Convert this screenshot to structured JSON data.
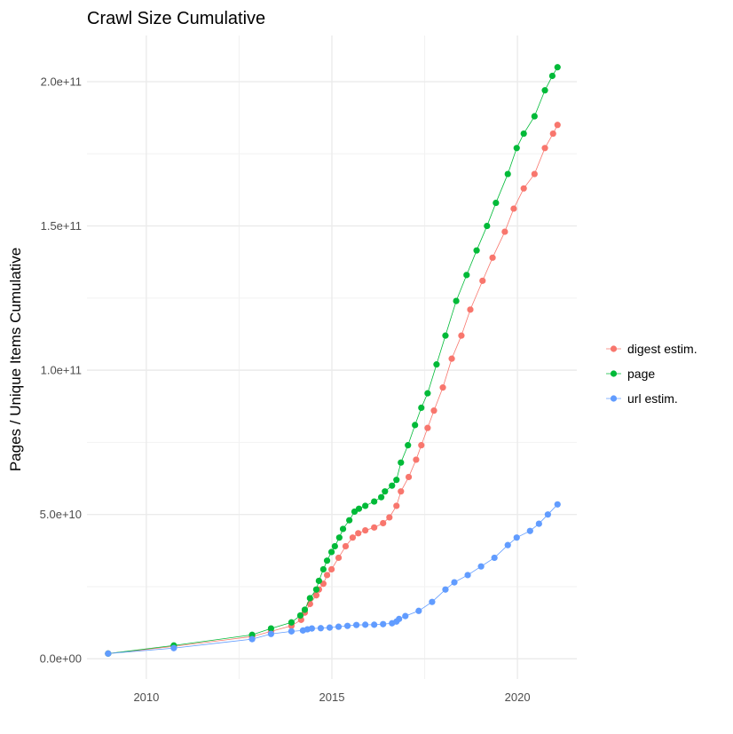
{
  "chart_data": {
    "type": "line",
    "title": "Crawl Size Cumulative",
    "xlabel": "",
    "ylabel": "Pages / Unique Items Cumulative",
    "xlim": [
      2008.4,
      2021.6
    ],
    "ylim": [
      -7000000000.0,
      216000000000.0
    ],
    "x_ticks": [
      2010,
      2015,
      2020
    ],
    "x_tick_labels": [
      "2010",
      "2015",
      "2020"
    ],
    "y_ticks": [
      0,
      50000000000.0,
      100000000000.0,
      150000000000.0,
      200000000000.0
    ],
    "y_tick_labels": [
      "0.0e+00",
      "5.0e+10",
      "1.0e+11",
      "1.5e+11",
      "2.0e+11"
    ],
    "grid": true,
    "legend_position": "right",
    "markers": "points with connecting lines",
    "series": [
      {
        "name": "digest estim.",
        "color": "#F8766D",
        "x": [
          2008.97,
          2010.74,
          2012.85,
          2013.36,
          2013.91,
          2014.17,
          2014.27,
          2014.41,
          2014.58,
          2014.65,
          2014.77,
          2014.87,
          2014.99,
          2015.18,
          2015.37,
          2015.56,
          2015.71,
          2015.9,
          2016.14,
          2016.38,
          2016.55,
          2016.74,
          2016.86,
          2017.07,
          2017.27,
          2017.41,
          2017.58,
          2017.75,
          2017.99,
          2018.23,
          2018.49,
          2018.73,
          2019.06,
          2019.33,
          2019.66,
          2019.9,
          2020.17,
          2020.46,
          2020.74,
          2020.96,
          2021.08
        ],
        "y": [
          1800000000.0,
          4300000000.0,
          7700000000.0,
          9500000000.0,
          11400000000.0,
          13500000000.0,
          16000000000.0,
          19000000000.0,
          22000000000.0,
          24000000000.0,
          26000000000.0,
          29000000000.0,
          31000000000.0,
          35000000000.0,
          39000000000.0,
          42000000000.0,
          43500000000.0,
          44500000000.0,
          45500000000.0,
          47000000000.0,
          49000000000.0,
          53000000000.0,
          58000000000.0,
          63000000000.0,
          69000000000.0,
          74000000000.0,
          80000000000.0,
          86000000000.0,
          94000000000.0,
          104000000000.0,
          112000000000.0,
          121000000000.0,
          131000000000.0,
          139000000000.0,
          148000000000.0,
          156000000000.0,
          163000000000.0,
          168000000000.0,
          177000000000.0,
          182000000000.0,
          185000000000.0
        ]
      },
      {
        "name": "page",
        "color": "#00BA38",
        "x": [
          2008.97,
          2010.74,
          2012.85,
          2013.36,
          2013.91,
          2014.15,
          2014.27,
          2014.41,
          2014.58,
          2014.65,
          2014.77,
          2014.87,
          2014.99,
          2015.08,
          2015.2,
          2015.3,
          2015.47,
          2015.61,
          2015.73,
          2015.9,
          2016.14,
          2016.33,
          2016.43,
          2016.62,
          2016.74,
          2016.86,
          2017.05,
          2017.24,
          2017.41,
          2017.58,
          2017.82,
          2018.06,
          2018.35,
          2018.63,
          2018.9,
          2019.18,
          2019.42,
          2019.74,
          2019.98,
          2020.17,
          2020.46,
          2020.74,
          2020.94,
          2021.08
        ],
        "y": [
          1800000000.0,
          4600000000.0,
          8300000000.0,
          10500000000.0,
          12600000000.0,
          15000000000.0,
          17000000000.0,
          21000000000.0,
          24000000000.0,
          27000000000.0,
          31000000000.0,
          34000000000.0,
          37000000000.0,
          39000000000.0,
          42000000000.0,
          45000000000.0,
          48000000000.0,
          51000000000.0,
          52000000000.0,
          53000000000.0,
          54500000000.0,
          56000000000.0,
          58000000000.0,
          60000000000.0,
          62000000000.0,
          68000000000.0,
          74000000000.0,
          81000000000.0,
          87000000000.0,
          92000000000.0,
          102000000000.0,
          112000000000.0,
          124000000000.0,
          133000000000.0,
          141500000000.0,
          150000000000.0,
          158000000000.0,
          168000000000.0,
          177000000000.0,
          182000000000.0,
          188000000000.0,
          197000000000.0,
          202000000000.0,
          205000000000.0
        ]
      },
      {
        "name": "url estim.",
        "color": "#619CFF",
        "x": [
          2008.97,
          2010.74,
          2012.85,
          2013.36,
          2013.91,
          2014.22,
          2014.34,
          2014.46,
          2014.7,
          2014.94,
          2015.18,
          2015.42,
          2015.66,
          2015.9,
          2016.14,
          2016.38,
          2016.62,
          2016.74,
          2016.81,
          2016.98,
          2017.34,
          2017.7,
          2018.06,
          2018.3,
          2018.66,
          2019.02,
          2019.38,
          2019.74,
          2019.98,
          2020.34,
          2020.58,
          2020.82,
          2021.08
        ],
        "y": [
          1800000000.0,
          3700000000.0,
          6800000000.0,
          8600000000.0,
          9500000000.0,
          9800000000.0,
          10200000000.0,
          10500000000.0,
          10600000000.0,
          10800000000.0,
          11100000000.0,
          11400000000.0,
          11700000000.0,
          11800000000.0,
          11800000000.0,
          12000000000.0,
          12300000000.0,
          12900000000.0,
          13800000000.0,
          14800000000.0,
          16600000000.0,
          19700000000.0,
          24000000000.0,
          26500000000.0,
          29000000000.0,
          32000000000.0,
          35000000000.0,
          39400000000.0,
          42000000000.0,
          44300000000.0,
          46800000000.0,
          50000000000.0,
          53500000000.0
        ]
      }
    ]
  }
}
